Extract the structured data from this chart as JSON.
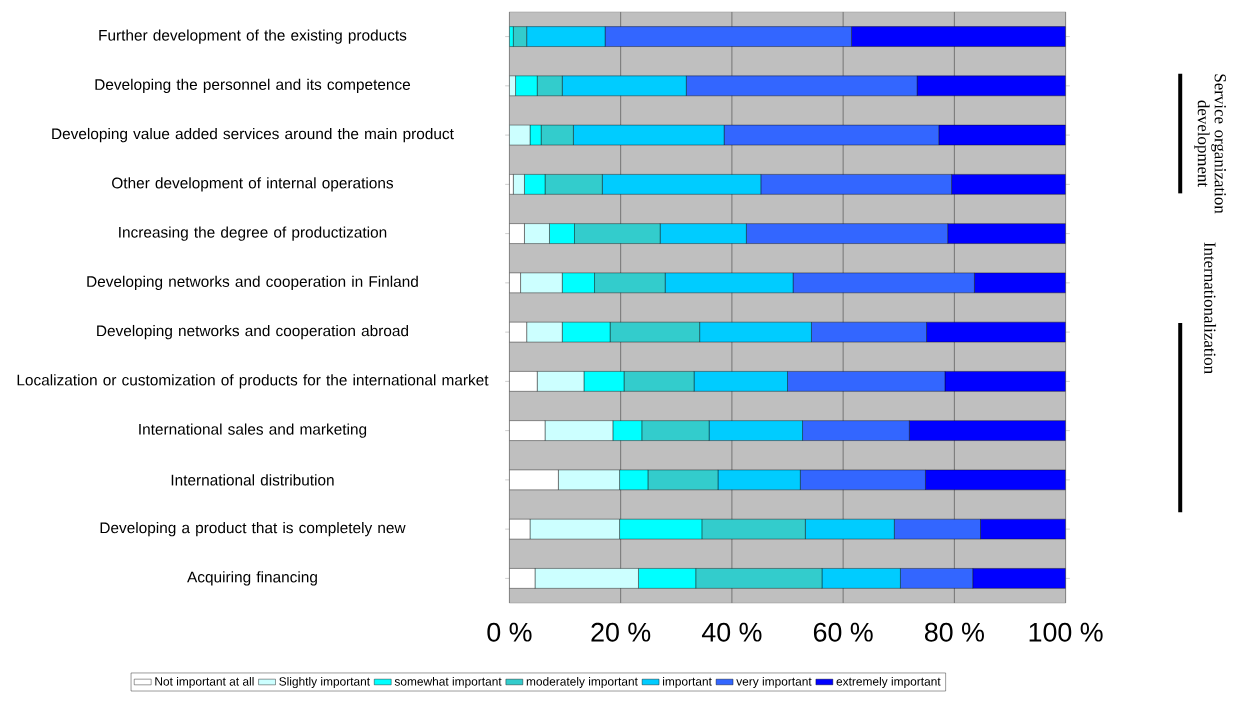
{
  "chart_data": {
    "type": "bar",
    "orientation": "horizontal",
    "stacked": true,
    "categories": [
      "Further development of the existing products",
      "Developing the personnel and its competence",
      "Developing value added services around the main product",
      "Other development of internal operations",
      "Increasing the degree of productization",
      "Developing networks and cooperation in Finland",
      "Developing networks and cooperation abroad",
      "Localization or customization of products for the international market",
      "International sales and marketing",
      "International distribution",
      "Developing a product that is completely new",
      "Acquiring financing"
    ],
    "series": [
      {
        "name": "Not important at all",
        "color": "#ffffff",
        "values": [
          0,
          0,
          0,
          0.7,
          2.7,
          2.0,
          3.1,
          5.0,
          6.4,
          8.8,
          3.7,
          4.6
        ]
      },
      {
        "name": "Slightly important",
        "color": "#ccffff",
        "values": [
          0,
          1.1,
          3.7,
          2.0,
          4.5,
          7.5,
          6.4,
          8.4,
          12.2,
          11.0,
          16.1,
          18.6
        ]
      },
      {
        "name": "somewhat important",
        "color": "#00ffff",
        "values": [
          0.7,
          3.9,
          2.0,
          3.7,
          4.5,
          5.8,
          8.6,
          7.2,
          5.2,
          5.1,
          14.8,
          10.3
        ]
      },
      {
        "name": "moderately important",
        "color": "#33cccc",
        "values": [
          2.4,
          4.5,
          5.8,
          10.3,
          15.4,
          12.7,
          16.1,
          12.6,
          12.1,
          12.6,
          18.6,
          22.7
        ]
      },
      {
        "name": "important",
        "color": "#00ccff",
        "values": [
          14.1,
          22.3,
          27.1,
          28.5,
          15.5,
          23.0,
          20.1,
          16.8,
          16.8,
          14.8,
          16.0,
          14.1
        ]
      },
      {
        "name": "very important",
        "color": "#3366ff",
        "values": [
          44.3,
          41.5,
          38.6,
          34.3,
          36.2,
          32.6,
          20.7,
          28.3,
          19.2,
          22.5,
          15.5,
          13.0
        ]
      },
      {
        "name": "extremely important",
        "color": "#0000ff",
        "values": [
          38.5,
          26.7,
          22.8,
          20.5,
          21.2,
          16.4,
          25.0,
          21.7,
          28.1,
          25.2,
          15.3,
          16.7
        ]
      }
    ],
    "xlim": [
      0,
      100
    ],
    "xticks": [
      {
        "value": 0,
        "label": "0 %"
      },
      {
        "value": 20,
        "label": "20 %"
      },
      {
        "value": 40,
        "label": "40 %"
      },
      {
        "value": 60,
        "label": "60 %"
      },
      {
        "value": 80,
        "label": "80 %"
      },
      {
        "value": 100,
        "label": "100 %"
      }
    ],
    "grid": "x",
    "legend": "bottom",
    "annotations": [
      "Service organization development",
      "Internationalization"
    ]
  }
}
